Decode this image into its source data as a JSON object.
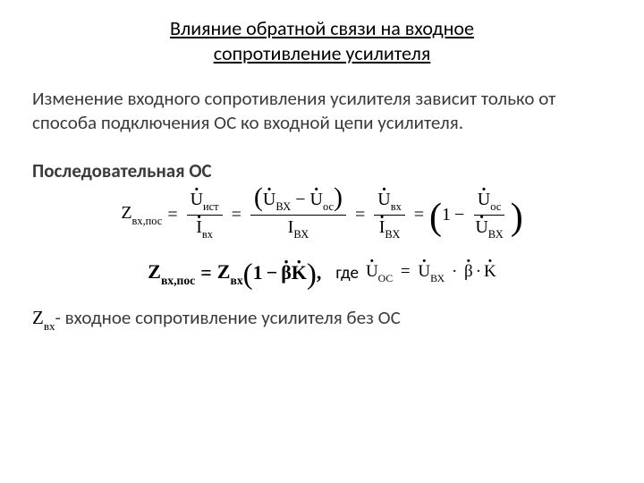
{
  "title_line1": "Влияние обратной связи на входное",
  "title_line2": "сопротивление усилителя",
  "paragraph": "Изменение входного сопротивления усилителя зависит только от способа подключения ОС ко входной цепи усилителя.",
  "subheading": "Последовательная ОС",
  "sym": {
    "Z": "Z",
    "U": "U",
    "I": "I",
    "beta": "β",
    "K": "K",
    "one": "1",
    "minus": "−",
    "eq": "=",
    "comma": ",",
    "mul": "·"
  },
  "sub": {
    "vxpos": "вх,пос",
    "ist": "ист",
    "vx": "вх",
    "VX": "ВХ",
    "oc": "ос",
    "OC": "ОС"
  },
  "where": "где",
  "note_tail": "- входное сопротивление усилителя без ОС"
}
